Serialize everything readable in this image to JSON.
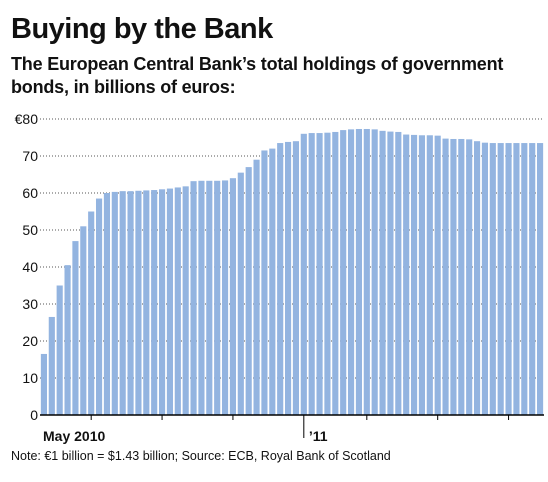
{
  "title": "Buying by the Bank",
  "subtitle": "The European Central Bank’s total holdings of government bonds, in billions of euros:",
  "note": "Note: €1 billion = $1.43 billion; Source: ECB, Royal Bank of Scotland",
  "colors": {
    "bar": "#93b4e0",
    "baseline": "#000000",
    "grid": "#555555"
  },
  "chart_data": {
    "type": "bar",
    "title": "Buying by the Bank",
    "subtitle": "The European Central Bank’s total holdings of government bonds, in billions of euros:",
    "ylim": [
      0,
      80
    ],
    "yticks": [
      0,
      10,
      20,
      30,
      40,
      50,
      60,
      70,
      80
    ],
    "ytick_labels": [
      "0",
      "10",
      "20",
      "30",
      "40",
      "50",
      "60",
      "70",
      "€80"
    ],
    "grid": "dotted horizontal",
    "x_labels": [
      {
        "label": "May 2010",
        "bar_index": 4
      },
      {
        "label": "’11",
        "bar_index": 33
      }
    ],
    "x_major_tick_bar_index": 33,
    "x_minor_tick_bar_indices": [
      6,
      15,
      24,
      41,
      50,
      59,
      68
    ],
    "values": [
      16.5,
      26.5,
      35,
      40.5,
      47,
      51,
      55,
      58.5,
      60,
      60.3,
      60.5,
      60.5,
      60.6,
      60.7,
      60.8,
      61,
      61.2,
      61.5,
      61.8,
      63.2,
      63.3,
      63.3,
      63.3,
      63.4,
      64,
      65.5,
      67,
      69,
      71.5,
      72,
      73.5,
      73.8,
      74,
      76,
      76.2,
      76.2,
      76.3,
      76.5,
      77,
      77.2,
      77.3,
      77.3,
      77.2,
      76.8,
      76.6,
      76.5,
      75.8,
      75.7,
      75.6,
      75.6,
      75.5,
      74.7,
      74.6,
      74.6,
      74.5,
      74,
      73.6,
      73.5,
      73.5,
      73.5,
      73.5,
      73.5,
      73.5,
      73.5
    ]
  }
}
